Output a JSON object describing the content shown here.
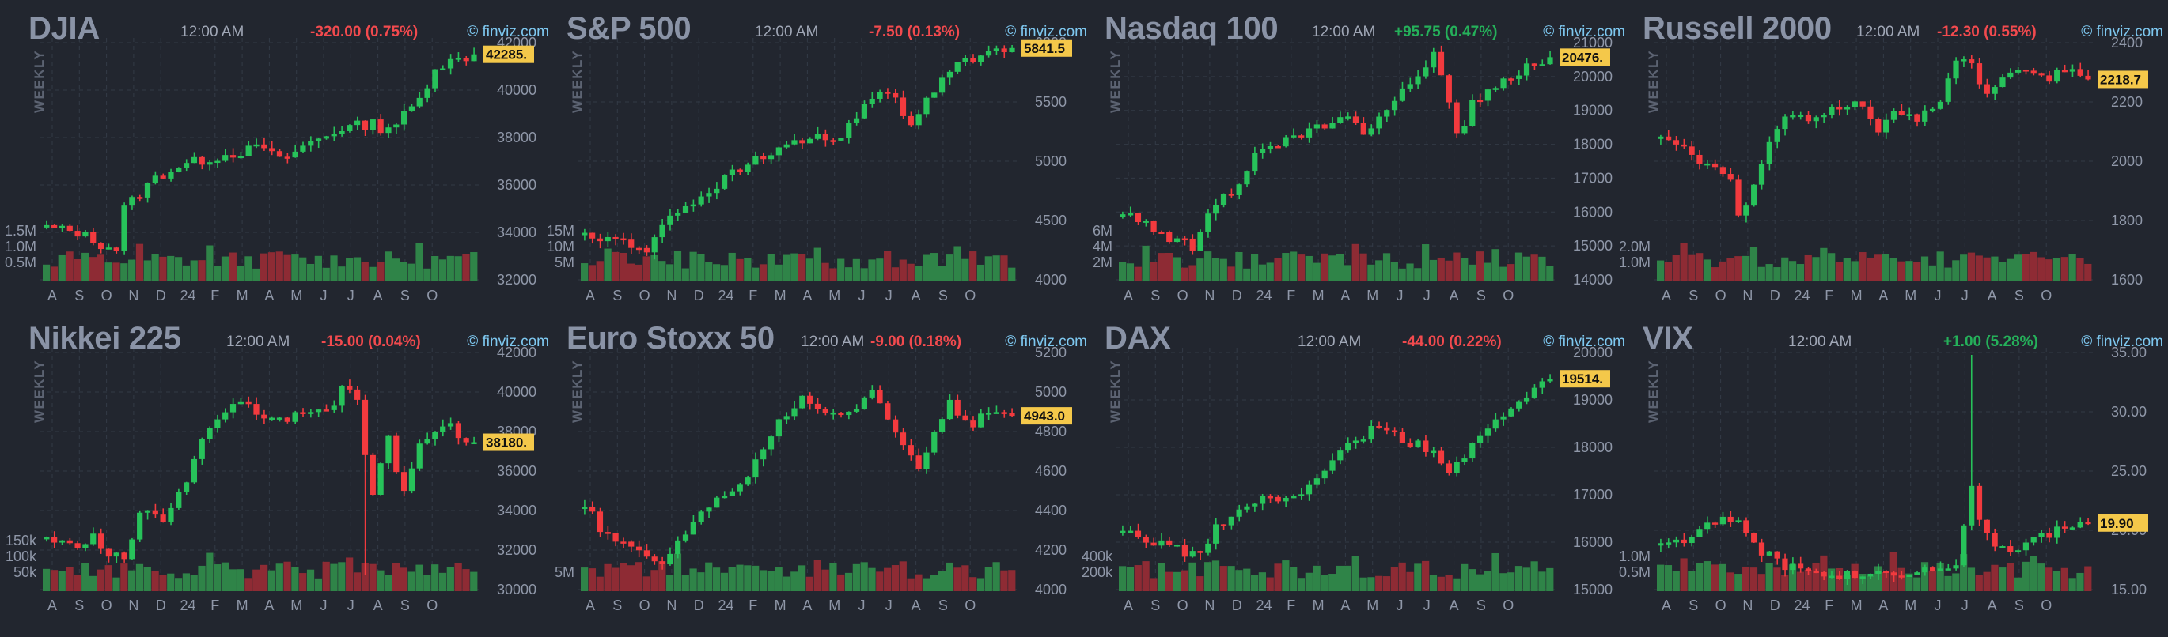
{
  "colors": {
    "background": "#22262f",
    "grid": "#333a46",
    "up": "#27c25a",
    "down": "#f23a3e",
    "vol_up": "#2f8448",
    "vol_down": "#8e2b34",
    "last_price_bg": "#f4c84a",
    "change_negative": "#f24a4e",
    "change_positive": "#25b05a",
    "source_link": "#7ec8f0"
  },
  "source_icon": "copyright-icon",
  "panels": [
    {
      "title": "DJIA",
      "time": "12:00 AM",
      "change": "-320.00 (0.75%)",
      "change_dir": "negative",
      "source": "finviz.com",
      "period": "WEEKLY",
      "last_price": "42285.",
      "y_ticks": [
        "42000",
        "40000",
        "38000",
        "36000",
        "34000",
        "32000"
      ],
      "vol_ticks": [
        "1.5M",
        "1.0M",
        "0.5M"
      ],
      "x_ticks": [
        "A",
        "S",
        "O",
        "N",
        "D",
        "24",
        "F",
        "M",
        "A",
        "M",
        "J",
        "J",
        "A",
        "S",
        "O"
      ]
    },
    {
      "title": "S&P 500",
      "time": "12:00 AM",
      "change": "-7.50 (0.13%)",
      "change_dir": "negative",
      "source": "finviz.com",
      "period": "WEEKLY",
      "last_price": "5841.5",
      "y_ticks": [
        "6000",
        "5500",
        "5000",
        "4500",
        "4000"
      ],
      "vol_ticks": [
        "15M",
        "10M",
        "5M"
      ],
      "x_ticks": [
        "A",
        "S",
        "O",
        "N",
        "D",
        "24",
        "F",
        "M",
        "A",
        "M",
        "J",
        "J",
        "A",
        "S",
        "O"
      ]
    },
    {
      "title": "Nasdaq 100",
      "time": "12:00 AM",
      "change": "+95.75 (0.47%)",
      "change_dir": "positive",
      "source": "finviz.com",
      "period": "WEEKLY",
      "last_price": "20476.",
      "y_ticks": [
        "21000",
        "20000",
        "19000",
        "18000",
        "17000",
        "16000",
        "15000",
        "14000"
      ],
      "vol_ticks": [
        "6M",
        "4M",
        "2M"
      ],
      "x_ticks": [
        "A",
        "S",
        "O",
        "N",
        "D",
        "24",
        "F",
        "M",
        "A",
        "M",
        "J",
        "J",
        "A",
        "S",
        "O"
      ]
    },
    {
      "title": "Russell 2000",
      "time": "12:00 AM",
      "change": "-12.30 (0.55%)",
      "change_dir": "negative",
      "source": "finviz.com",
      "period": "WEEKLY",
      "last_price": "2218.7",
      "y_ticks": [
        "2400",
        "2200",
        "2000",
        "1800",
        "1600"
      ],
      "vol_ticks": [
        "2.0M",
        "1.0M"
      ],
      "x_ticks": [
        "A",
        "S",
        "O",
        "N",
        "D",
        "24",
        "F",
        "M",
        "A",
        "M",
        "J",
        "J",
        "A",
        "S",
        "O"
      ]
    },
    {
      "title": "Nikkei 225",
      "time": "12:00 AM",
      "change": "-15.00 (0.04%)",
      "change_dir": "negative",
      "source": "finviz.com",
      "period": "WEEKLY",
      "last_price": "38180.",
      "y_ticks": [
        "42000",
        "40000",
        "38000",
        "36000",
        "34000",
        "32000",
        "30000"
      ],
      "vol_ticks": [
        "150k",
        "100k",
        "50k"
      ],
      "x_ticks": [
        "A",
        "S",
        "O",
        "N",
        "D",
        "24",
        "F",
        "M",
        "A",
        "M",
        "J",
        "J",
        "A",
        "S",
        "O"
      ]
    },
    {
      "title": "Euro Stoxx 50",
      "time": "12:00 AM",
      "change": "-9.00 (0.18%)",
      "change_dir": "negative",
      "source": "finviz.com",
      "period": "WEEKLY",
      "last_price": "4943.0",
      "y_ticks": [
        "5200",
        "5000",
        "4800",
        "4600",
        "4400",
        "4200",
        "4000"
      ],
      "vol_ticks": [
        "5M"
      ],
      "x_ticks": [
        "A",
        "S",
        "O",
        "N",
        "D",
        "24",
        "F",
        "M",
        "A",
        "M",
        "J",
        "J",
        "A",
        "S",
        "O"
      ]
    },
    {
      "title": "DAX",
      "time": "12:00 AM",
      "change": "-44.00 (0.22%)",
      "change_dir": "negative",
      "source": "finviz.com",
      "period": "WEEKLY",
      "last_price": "19514.",
      "y_ticks": [
        "20000",
        "19000",
        "18000",
        "17000",
        "16000",
        "15000"
      ],
      "vol_ticks": [
        "400k",
        "200k"
      ],
      "x_ticks": [
        "A",
        "S",
        "O",
        "N",
        "D",
        "24",
        "F",
        "M",
        "A",
        "M",
        "J",
        "J",
        "A",
        "S",
        "O"
      ]
    },
    {
      "title": "VIX",
      "time": "12:00 AM",
      "change": "+1.00 (5.28%)",
      "change_dir": "positive",
      "source": "finviz.com",
      "period": "WEEKLY",
      "last_price": "19.90",
      "y_ticks": [
        "35.00",
        "30.00",
        "25.00",
        "20.00",
        "15.00"
      ],
      "vol_ticks": [
        "1.0M",
        "0.5M"
      ],
      "x_ticks": [
        "A",
        "S",
        "O",
        "N",
        "D",
        "24",
        "F",
        "M",
        "A",
        "M",
        "J",
        "J",
        "A",
        "S",
        "O"
      ]
    }
  ]
}
